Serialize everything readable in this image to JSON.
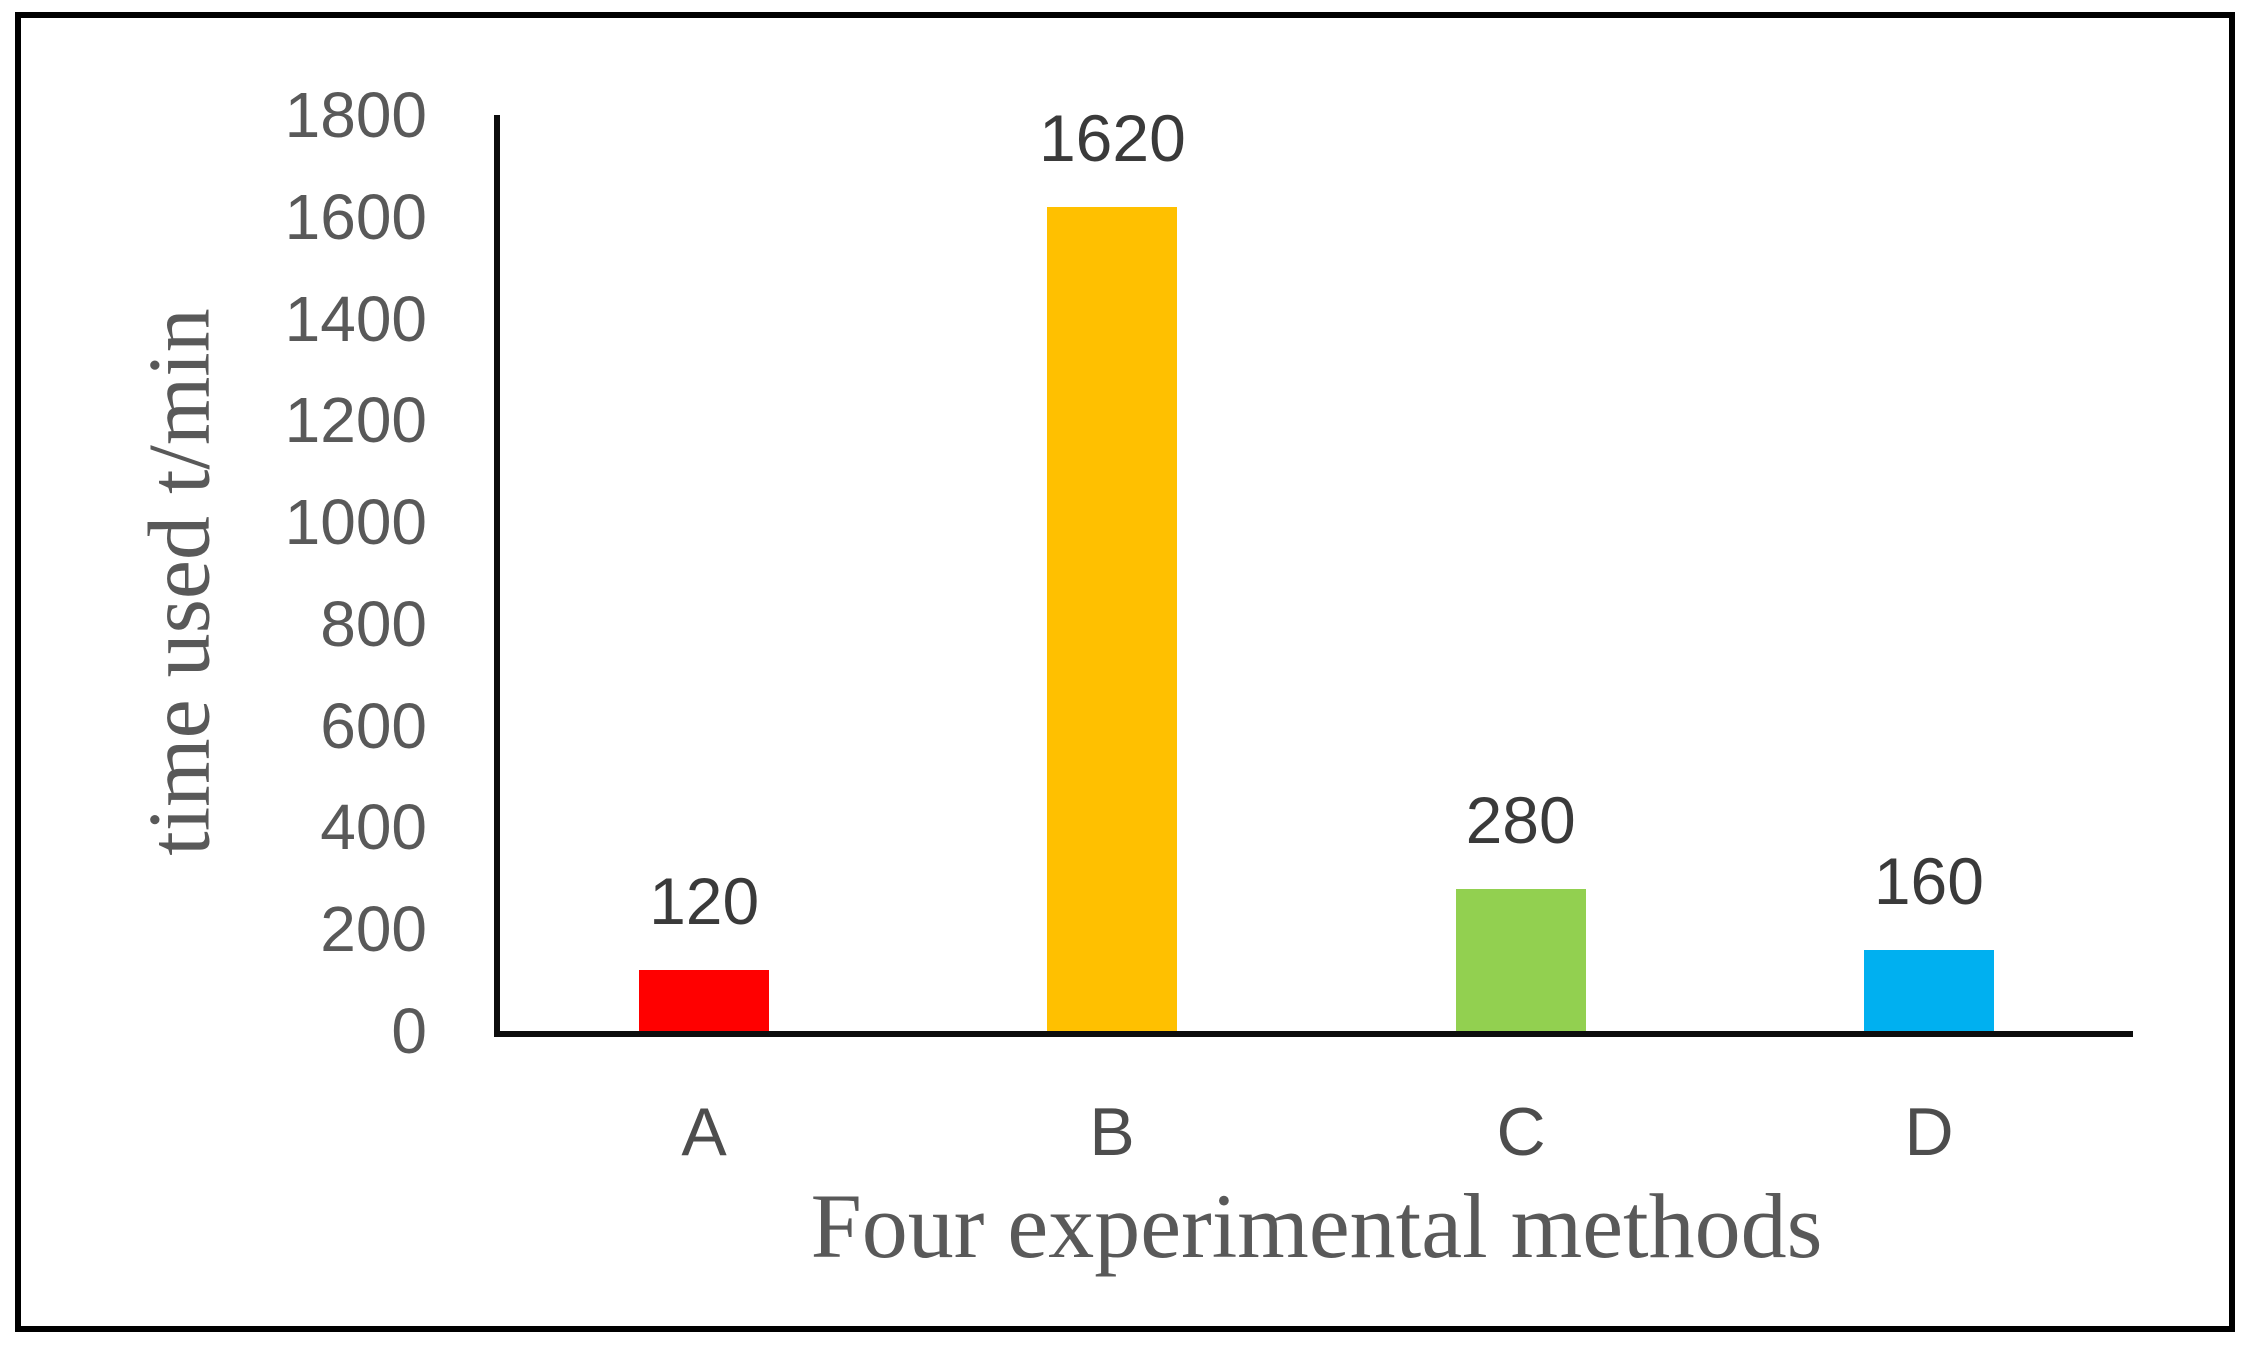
{
  "figure": {
    "background_color": "#ffffff",
    "frame_color": "#000000",
    "axis_line_color": "#0d0d0d",
    "tick_text_color": "#595959",
    "category_text_color": "#4d4d4d",
    "value_label_color": "#3a3a3a",
    "title_text_color": "#595959"
  },
  "chart_data": {
    "type": "bar",
    "title": "",
    "xlabel": "Four experimental methods",
    "ylabel": "time used t/min",
    "categories": [
      "A",
      "B",
      "C",
      "D"
    ],
    "values": [
      120,
      1620,
      280,
      160
    ],
    "data_labels": [
      "120",
      "1620",
      "280",
      "160"
    ],
    "bar_colors": [
      "#ff0000",
      "#ffc000",
      "#92d050",
      "#00b0f0"
    ],
    "ylim": [
      0,
      1800
    ],
    "ytick_interval": 200,
    "yticks": [
      "1800",
      "1600",
      "1400",
      "1200",
      "1000",
      "800",
      "600",
      "400",
      "200",
      "0"
    ],
    "grid": false,
    "legend_position": "none"
  }
}
